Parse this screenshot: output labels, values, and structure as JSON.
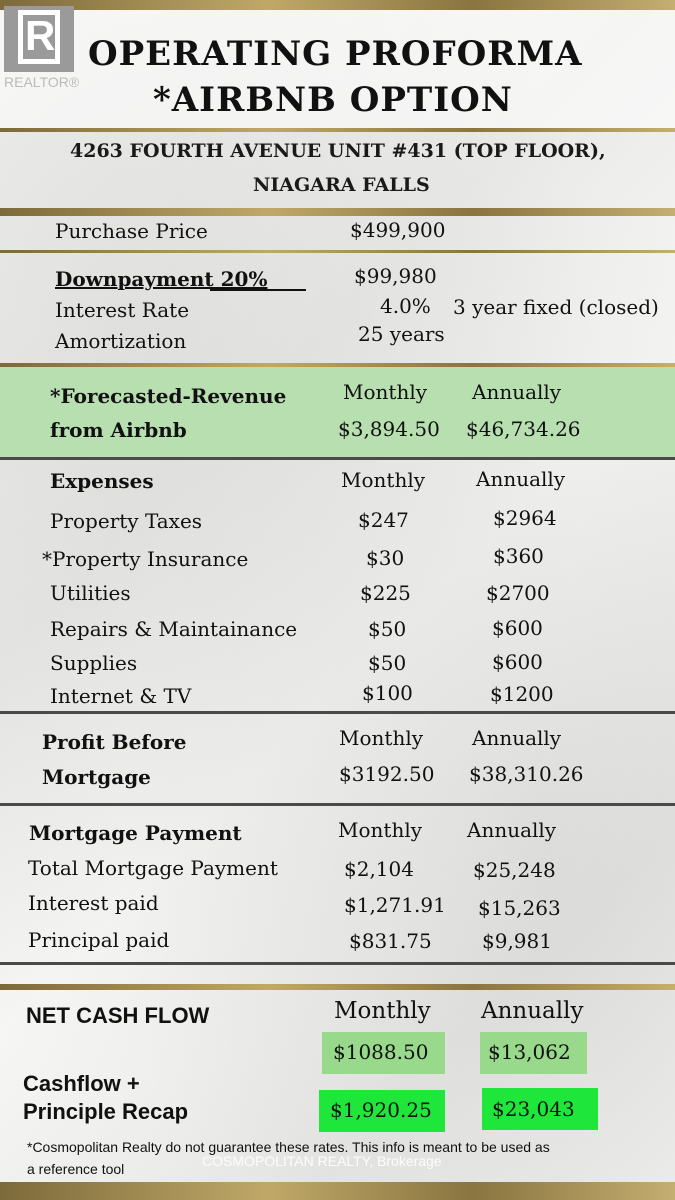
{
  "logo": {
    "text": "REALTOR®",
    "letter": "R"
  },
  "title": {
    "line1": "OPERATING PROFORMA",
    "line2": "*AIRBNB OPTION"
  },
  "address": {
    "line1": "4263 FOURTH AVENUE UNIT #431 (TOP FLOOR),",
    "line2": "NIAGARA FALLS"
  },
  "financing": {
    "purchase_label": "Purchase Price",
    "purchase_value": "$499,900",
    "down_label": "Downpayment  20%",
    "down_value": "$99,980",
    "rate_label": "Interest Rate",
    "rate_value": "4.0%",
    "rate_note": "3 year fixed (closed)",
    "amort_label": "Amortization",
    "amort_value": "25 years"
  },
  "revenue": {
    "label_line1": "*Forecasted-Revenue",
    "label_line2": "from Airbnb",
    "monthly_header": "Monthly",
    "annual_header": "Annually",
    "monthly": "$3,894.50",
    "annual": "$46,734.26"
  },
  "expenses": {
    "header": "Expenses",
    "monthly_header": "Monthly",
    "annual_header": "Annually",
    "rows": [
      {
        "label": "Property Taxes",
        "monthly": "$247",
        "annual": "$2964"
      },
      {
        "label": "*Property Insurance",
        "monthly": "$30",
        "annual": "$360"
      },
      {
        "label": "Utilities",
        "monthly": "$225",
        "annual": "$2700"
      },
      {
        "label": "Repairs & Maintainance",
        "monthly": "$50",
        "annual": "$600"
      },
      {
        "label": "Supplies",
        "monthly": "$50",
        "annual": "$600"
      },
      {
        "label": "Internet & TV",
        "monthly": "$100",
        "annual": "$1200"
      }
    ]
  },
  "profit": {
    "label_line1": "Profit Before",
    "label_line2": "Mortgage",
    "monthly_header": "Monthly",
    "annual_header": "Annually",
    "monthly": "$3192.50",
    "annual": "$38,310.26"
  },
  "mortgage": {
    "header": "Mortgage Payment",
    "monthly_header": "Monthly",
    "annual_header": "Annually",
    "rows": [
      {
        "label": "Total Mortgage Payment",
        "monthly": "$2,104",
        "annual": "$25,248"
      },
      {
        "label": "Interest paid",
        "monthly": "$1,271.91",
        "annual": "$15,263"
      },
      {
        "label": "Principal paid",
        "monthly": "$831.75",
        "annual": "$9,981"
      }
    ]
  },
  "net": {
    "label": "NET CASH FLOW",
    "monthly_header": "Monthly",
    "annual_header": "Annually",
    "monthly": "$1088.50",
    "annual": "$13,062",
    "recap_line1": "Cashflow +",
    "recap_line2": "Principle Recap",
    "recap_monthly": "$1,920.25",
    "recap_annual": "$23,043"
  },
  "footer": {
    "disclaimer_line1": "*Cosmopolitan Realty do not guarantee these rates. This info is meant to be used as",
    "disclaimer_line2": "a reference tool",
    "watermark": "COSMOPOLITAN REALTY, Brokerage"
  },
  "colors": {
    "accent_gold": "#bfa868",
    "revenue_band": "#b7dfb0",
    "net_cell": "#98d98b",
    "recap_cell": "#1ee63a"
  }
}
